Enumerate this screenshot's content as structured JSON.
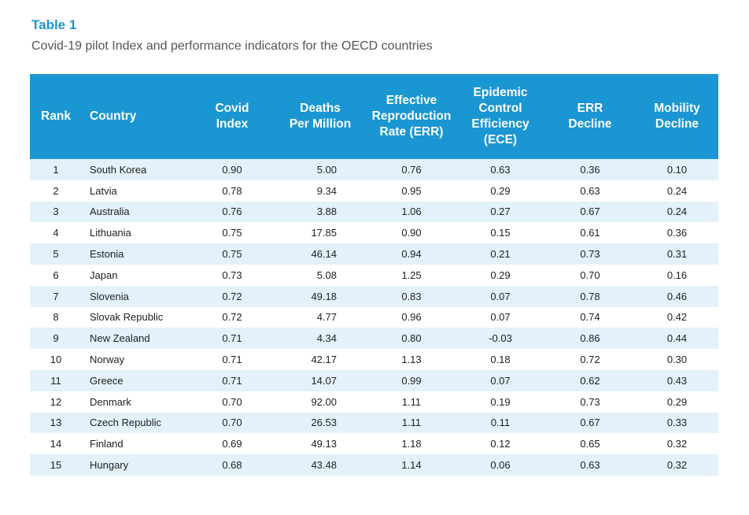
{
  "title": "Table 1",
  "caption": "Covid-19 pilot Index and performance indicators for the OECD countries",
  "columns": {
    "rank": "Rank",
    "country": "Country",
    "covid_index": [
      "Covid",
      "Index"
    ],
    "deaths": [
      "Deaths",
      "Per Million"
    ],
    "err": [
      "Effective",
      "Reproduction",
      "Rate (ERR)"
    ],
    "ece": [
      "Epidemic",
      "Control",
      "Efficiency",
      "(ECE)"
    ],
    "err_decline": [
      "ERR",
      "Decline"
    ],
    "mobility": [
      "Mobility",
      "Decline"
    ]
  },
  "rows": [
    {
      "rank": "1",
      "country": "South Korea",
      "covid_index": "0.90",
      "deaths": "5.00",
      "err": "0.76",
      "ece": "0.63",
      "err_decline": "0.36",
      "mobility": "0.10"
    },
    {
      "rank": "2",
      "country": "Latvia",
      "covid_index": "0.78",
      "deaths": "9.34",
      "err": "0.95",
      "ece": "0.29",
      "err_decline": "0.63",
      "mobility": "0.24"
    },
    {
      "rank": "3",
      "country": "Australia",
      "covid_index": "0.76",
      "deaths": "3.88",
      "err": "1.06",
      "ece": "0.27",
      "err_decline": "0.67",
      "mobility": "0.24"
    },
    {
      "rank": "4",
      "country": "Lithuania",
      "covid_index": "0.75",
      "deaths": "17.85",
      "err": "0.90",
      "ece": "0.15",
      "err_decline": "0.61",
      "mobility": "0.36"
    },
    {
      "rank": "5",
      "country": "Estonia",
      "covid_index": "0.75",
      "deaths": "46.14",
      "err": "0.94",
      "ece": "0.21",
      "err_decline": "0.73",
      "mobility": "0.31"
    },
    {
      "rank": "6",
      "country": "Japan",
      "covid_index": "0.73",
      "deaths": "5.08",
      "err": "1.25",
      "ece": "0.29",
      "err_decline": "0.70",
      "mobility": "0.16"
    },
    {
      "rank": "7",
      "country": "Slovenia",
      "covid_index": "0.72",
      "deaths": "49.18",
      "err": "0.83",
      "ece": "0.07",
      "err_decline": "0.78",
      "mobility": "0.46"
    },
    {
      "rank": "8",
      "country": "Slovak Republic",
      "covid_index": "0.72",
      "deaths": "4.77",
      "err": "0.96",
      "ece": "0.07",
      "err_decline": "0.74",
      "mobility": "0.42"
    },
    {
      "rank": "9",
      "country": "New Zealand",
      "covid_index": "0.71",
      "deaths": "4.34",
      "err": "0.80",
      "ece": "-0.03",
      "err_decline": "0.86",
      "mobility": "0.44"
    },
    {
      "rank": "10",
      "country": "Norway",
      "covid_index": "0.71",
      "deaths": "42.17",
      "err": "1.13",
      "ece": "0.18",
      "err_decline": "0.72",
      "mobility": "0.30"
    },
    {
      "rank": "11",
      "country": "Greece",
      "covid_index": "0.71",
      "deaths": "14.07",
      "err": "0.99",
      "ece": "0.07",
      "err_decline": "0.62",
      "mobility": "0.43"
    },
    {
      "rank": "12",
      "country": "Denmark",
      "covid_index": "0.70",
      "deaths": "92.00",
      "err": "1.11",
      "ece": "0.19",
      "err_decline": "0.73",
      "mobility": "0.29"
    },
    {
      "rank": "13",
      "country": "Czech Republic",
      "covid_index": "0.70",
      "deaths": "26.53",
      "err": "1.11",
      "ece": "0.11",
      "err_decline": "0.67",
      "mobility": "0.33"
    },
    {
      "rank": "14",
      "country": "Finland",
      "covid_index": "0.69",
      "deaths": "49.13",
      "err": "1.18",
      "ece": "0.12",
      "err_decline": "0.65",
      "mobility": "0.32"
    },
    {
      "rank": "15",
      "country": "Hungary",
      "covid_index": "0.68",
      "deaths": "43.48",
      "err": "1.14",
      "ece": "0.06",
      "err_decline": "0.63",
      "mobility": "0.32"
    }
  ],
  "colors": {
    "accent": "#1a96d2",
    "stripe": "#e3f1fb"
  }
}
